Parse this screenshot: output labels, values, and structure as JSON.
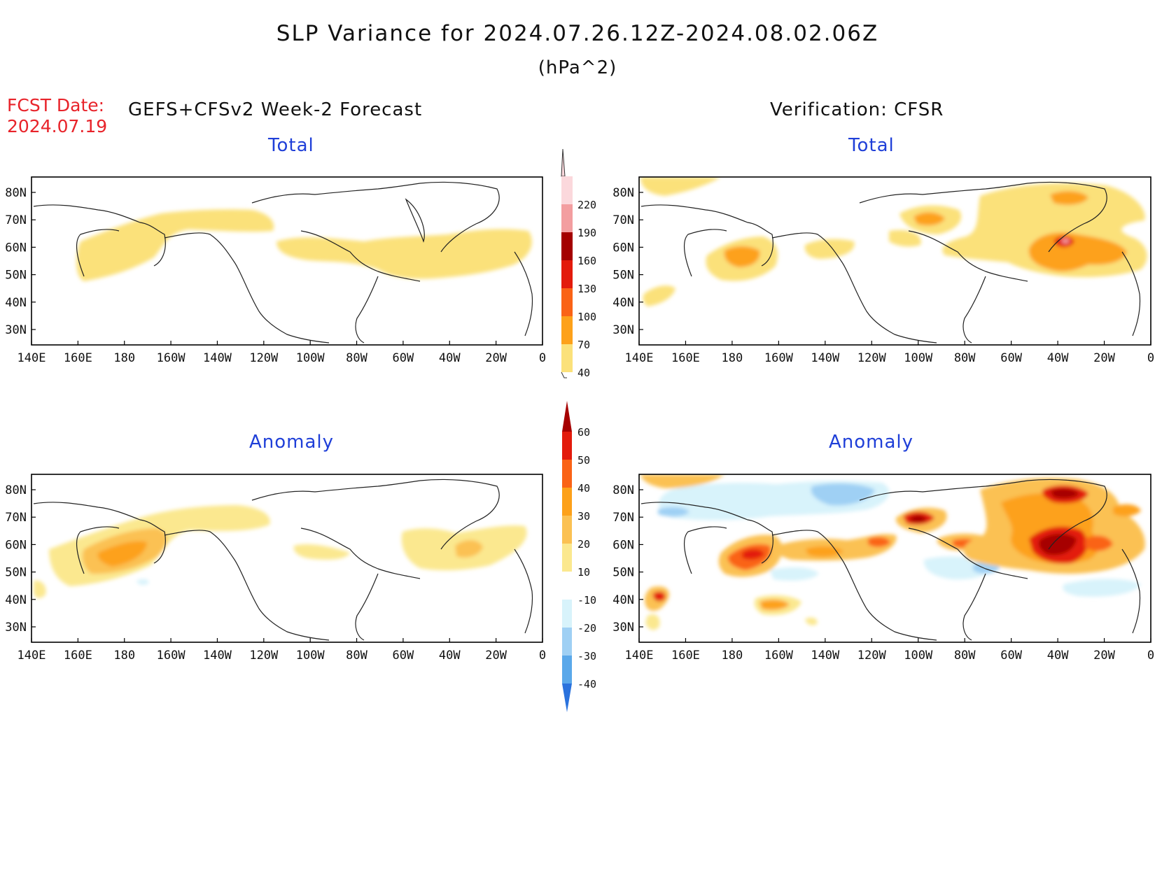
{
  "header": {
    "title": "SLP Variance for 2024.07.26.12Z-2024.08.02.06Z",
    "subtitle": "(hPa^2)",
    "fcst_label": "FCST Date:",
    "fcst_date": "2024.07.19",
    "forecast_title": "GEFS+CFSv2 Week-2 Forecast",
    "verification_title": "Verification: CFSR"
  },
  "panels": {
    "fc_total": {
      "label": "Total"
    },
    "ver_total": {
      "label": "Total"
    },
    "fc_anom": {
      "label": "Anomaly"
    },
    "ver_anom": {
      "label": "Anomaly"
    }
  },
  "axes": {
    "lat_labels": [
      "80N",
      "70N",
      "60N",
      "50N",
      "40N",
      "30N"
    ],
    "lon_labels": [
      "140E",
      "160E",
      "180",
      "160W",
      "140W",
      "120W",
      "100W",
      "80W",
      "60W",
      "40W",
      "20W",
      "0"
    ]
  },
  "colorbars": {
    "total": {
      "levels": [
        "40",
        "70",
        "100",
        "130",
        "160",
        "190",
        "220"
      ],
      "colors": [
        "#fbe17a",
        "#fda11a",
        "#fa6316",
        "#e31b0c",
        "#a40000",
        "#f39ea0",
        "#fbd8dc"
      ]
    },
    "anomaly": {
      "levels": [
        "60",
        "50",
        "40",
        "30",
        "20",
        "10",
        "-10",
        "-20",
        "-30",
        "-40"
      ],
      "colors": [
        "#a60000",
        "#e31b0c",
        "#fa6316",
        "#fda11a",
        "#fbc153",
        "#fbe88f",
        "#ffffff",
        "#d8f3fb",
        "#9fd0f4",
        "#5aa8ea",
        "#2a72dd"
      ]
    }
  }
}
